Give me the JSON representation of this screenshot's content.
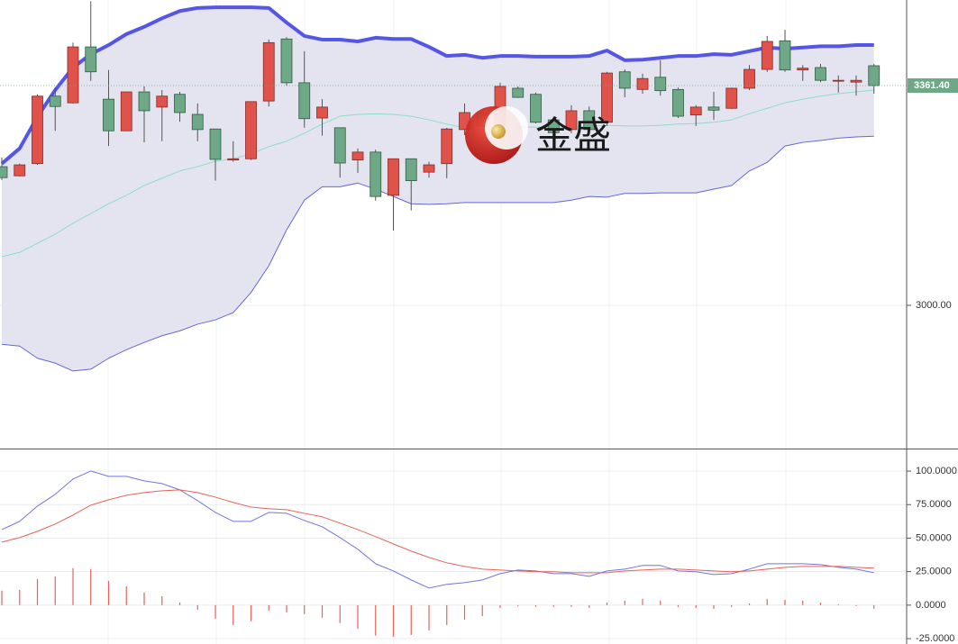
{
  "chart_data": [
    {
      "type": "candlestick",
      "ylim": [
        2764.5,
        3502.1
      ],
      "yticks": [
        {
          "value": 3000,
          "label": "3000.00"
        }
      ],
      "grid": true,
      "up_color": "#e0534b",
      "down_color": "#6ea887",
      "open": [
        3228,
        3213,
        3233,
        3344,
        3333,
        3425,
        3339,
        3287,
        3351,
        3326,
        3347,
        3314,
        3290,
        3239,
        3241,
        3336,
        3438,
        3366,
        3308,
        3292,
        3239,
        3252,
        3181,
        3241,
        3219,
        3233,
        3289,
        3316,
        3295,
        3357,
        3347,
        3305,
        3289,
        3320,
        3301,
        3384,
        3355,
        3375,
        3355,
        3313,
        3326,
        3324,
        3357,
        3388,
        3435,
        3387,
        3391,
        3369,
        3367,
        3394
      ],
      "high": [
        3243,
        3233,
        3347,
        3358,
        3432,
        3500,
        3387,
        3351,
        3360,
        3354,
        3351,
        3332,
        3290,
        3270,
        3335,
        3437,
        3441,
        3418,
        3339,
        3292,
        3258,
        3256,
        3241,
        3241,
        3236,
        3292,
        3332,
        3316,
        3366,
        3360,
        3350,
        3310,
        3329,
        3327,
        3384,
        3388,
        3381,
        3403,
        3358,
        3329,
        3351,
        3358,
        3395,
        3443,
        3453,
        3395,
        3397,
        3378,
        3378,
        3397
      ],
      "low": [
        3206,
        3212,
        3231,
        3287,
        3332,
        3369,
        3262,
        3287,
        3268,
        3270,
        3302,
        3270,
        3205,
        3236,
        3239,
        3327,
        3361,
        3292,
        3279,
        3210,
        3218,
        3172,
        3123,
        3156,
        3210,
        3209,
        3280,
        3295,
        3295,
        3341,
        3299,
        3277,
        3283,
        3284,
        3295,
        3342,
        3348,
        3345,
        3308,
        3295,
        3305,
        3323,
        3354,
        3384,
        3384,
        3369,
        3367,
        3350,
        3345,
        3348
      ],
      "close": [
        3210,
        3231,
        3344,
        3327,
        3425,
        3384,
        3287,
        3351,
        3320,
        3344,
        3317,
        3289,
        3240,
        3241,
        3335,
        3432,
        3366,
        3307,
        3326,
        3234,
        3252,
        3179,
        3241,
        3205,
        3231,
        3290,
        3317,
        3295,
        3360,
        3342,
        3301,
        3284,
        3320,
        3289,
        3382,
        3357,
        3373,
        3353,
        3311,
        3326,
        3321,
        3357,
        3388,
        3434,
        3387,
        3390,
        3370,
        3370,
        3370,
        3361.4
      ],
      "series": [
        {
          "color": "#5656e6",
          "width": 4,
          "values": [
            3233,
            3258,
            3310,
            3354,
            3391,
            3413,
            3428,
            3446,
            3458,
            3472,
            3484,
            3489,
            3490,
            3490,
            3490,
            3489,
            3465,
            3443,
            3437,
            3437,
            3434,
            3440,
            3438,
            3438,
            3425,
            3410,
            3412,
            3407,
            3410,
            3410,
            3409,
            3409,
            3409,
            3410,
            3419,
            3403,
            3404,
            3407,
            3410,
            3410,
            3413,
            3412,
            3418,
            3424,
            3422,
            3424,
            3426,
            3426,
            3428,
            3428
          ]
        },
        {
          "color": "#8fdcc6",
          "width": 1,
          "values": [
            3080,
            3087,
            3102,
            3117,
            3135,
            3151,
            3167,
            3181,
            3197,
            3209,
            3221,
            3228,
            3237,
            3241,
            3249,
            3261,
            3270,
            3283,
            3298,
            3311,
            3314,
            3315,
            3314,
            3311,
            3305,
            3298,
            3292,
            3290,
            3292,
            3293,
            3293,
            3293,
            3293,
            3295,
            3296,
            3295,
            3295,
            3296,
            3298,
            3299,
            3301,
            3305,
            3315,
            3324,
            3333,
            3339,
            3344,
            3348,
            3351,
            3354
          ]
        },
        {
          "color": "#6666dd",
          "width": 1,
          "values": [
            2936,
            2933,
            2913,
            2905,
            2892,
            2895,
            2913,
            2927,
            2939,
            2950,
            2958,
            2969,
            2976,
            2988,
            3021,
            3065,
            3124,
            3173,
            3195,
            3195,
            3201,
            3191,
            3179,
            3167,
            3166,
            3167,
            3169,
            3169,
            3169,
            3169,
            3169,
            3169,
            3173,
            3179,
            3178,
            3184,
            3184,
            3185,
            3185,
            3185,
            3191,
            3197,
            3221,
            3235,
            3262,
            3268,
            3271,
            3275,
            3277,
            3278
          ]
        }
      ],
      "band_fill": "#e4e4f1",
      "last_label": "3361.40",
      "last_color": "#6ea887",
      "watermark": "金盛"
    },
    {
      "type": "line",
      "ylim": [
        -29,
        115.5
      ],
      "grid": true,
      "yticks": [
        {
          "value": 100,
          "label": "100.0000"
        },
        {
          "value": 75,
          "label": "75.0000"
        },
        {
          "value": 50,
          "label": "50.0000"
        },
        {
          "value": 25,
          "label": "25.0000"
        },
        {
          "value": 0,
          "label": "0.0000"
        },
        {
          "value": -25,
          "label": "-25.0000"
        }
      ],
      "series": [
        {
          "color": "#7474e2",
          "values": [
            56.4,
            62.5,
            73.9,
            82.7,
            94.1,
            100.1,
            96.1,
            96.1,
            92.7,
            90.7,
            86.0,
            78.0,
            69.2,
            62.5,
            62.5,
            69.2,
            68.5,
            63.2,
            58.5,
            50.4,
            41.7,
            30.9,
            25.5,
            18.8,
            12.8,
            15.5,
            16.8,
            18.8,
            23.5,
            26.2,
            25.5,
            23.5,
            23.5,
            21.5,
            25.5,
            26.9,
            29.6,
            29.6,
            25.5,
            24.9,
            22.8,
            23.5,
            26.9,
            30.9,
            30.9,
            30.9,
            30.2,
            28.2,
            26.9,
            24.2
          ]
        },
        {
          "color": "#e8625a",
          "values": [
            47.0,
            50.4,
            55.1,
            60.5,
            67.2,
            74.6,
            78.6,
            82.0,
            84.0,
            85.3,
            86.0,
            84.0,
            80.6,
            76.6,
            73.2,
            71.9,
            71.2,
            68.5,
            65.9,
            61.2,
            56.4,
            51.1,
            45.7,
            40.3,
            35.6,
            31.6,
            28.9,
            26.9,
            26.2,
            25.5,
            24.9,
            24.9,
            24.2,
            24.2,
            24.2,
            25.5,
            26.2,
            26.9,
            26.9,
            26.2,
            25.5,
            24.9,
            25.5,
            26.9,
            28.2,
            28.9,
            28.9,
            28.9,
            28.2,
            27.6
          ]
        }
      ],
      "histogram": {
        "color": "#e8625a",
        "values": [
          10.8,
          11.4,
          19.5,
          21.5,
          27.6,
          26.9,
          18.1,
          14.1,
          9.4,
          6.7,
          2.0,
          -3.4,
          -10.1,
          -14.8,
          -12.1,
          -4.0,
          -5.4,
          -6.7,
          -9.4,
          -13.4,
          -17.5,
          -22.8,
          -23.5,
          -22.2,
          -18.8,
          -14.8,
          -10.8,
          -8.1,
          -2.0,
          -0.7,
          -1.3,
          -1.3,
          -1.3,
          -2.0,
          2.0,
          3.4,
          4.7,
          3.4,
          -1.3,
          -2.0,
          -2.7,
          -1.3,
          1.3,
          4.7,
          4.0,
          3.4,
          2.0,
          0.7,
          -0.7,
          -2.7
        ]
      }
    }
  ]
}
